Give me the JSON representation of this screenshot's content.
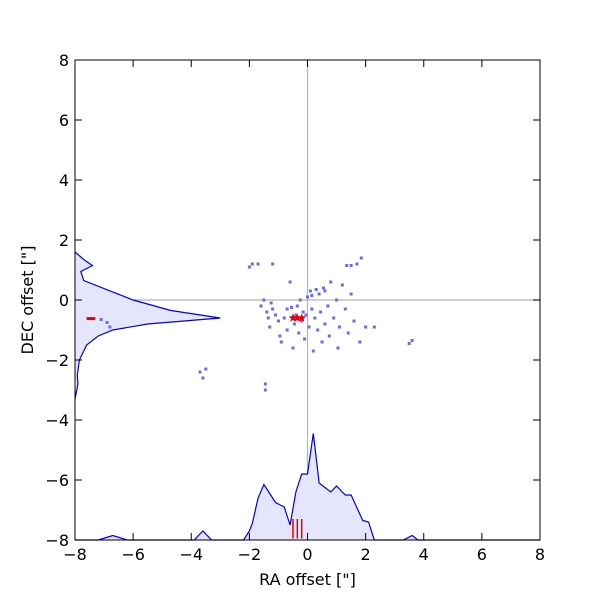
{
  "chart_data": {
    "type": "scatter",
    "title": "",
    "xlabel": "RA offset [\"]",
    "ylabel": "DEC offset [\"]",
    "xlim": [
      -8,
      8
    ],
    "ylim": [
      -8,
      8
    ],
    "x_ticks": [
      "−8",
      "−6",
      "−4",
      "−2",
      "0",
      "2",
      "4",
      "6",
      "8"
    ],
    "y_ticks": [
      "8",
      "6",
      "4",
      "2",
      "0",
      "−2",
      "−4",
      "−6",
      "−8"
    ],
    "x_tick_values": [
      -8,
      -6,
      -4,
      -2,
      0,
      2,
      4,
      6,
      8
    ],
    "y_tick_values": [
      8,
      6,
      4,
      2,
      0,
      -2,
      -4,
      -6,
      -8
    ],
    "grid": false,
    "reference_lines": {
      "x": 0,
      "y": 0,
      "color": "#b3b3b3"
    },
    "colors": {
      "points": "#6a6af5",
      "markers": "#e60000",
      "histogram_line": "#0000e6",
      "histogram_fill": "#e5e5fb"
    },
    "points": [
      [
        -7.1,
        -0.65
      ],
      [
        -6.9,
        -0.75
      ],
      [
        -6.8,
        -0.9
      ],
      [
        -3.7,
        -2.4
      ],
      [
        -3.6,
        -2.6
      ],
      [
        -3.5,
        -2.3
      ],
      [
        -2.0,
        1.1
      ],
      [
        -1.9,
        1.2
      ],
      [
        -1.7,
        1.2
      ],
      [
        -1.2,
        1.2
      ],
      [
        -1.45,
        -2.8
      ],
      [
        -1.45,
        -3.0
      ],
      [
        -1.6,
        -0.2
      ],
      [
        -1.5,
        0.0
      ],
      [
        -1.4,
        -0.4
      ],
      [
        -1.35,
        -0.6
      ],
      [
        -1.3,
        -0.9
      ],
      [
        -1.2,
        -0.3
      ],
      [
        -1.1,
        -0.5
      ],
      [
        -1.0,
        -0.7
      ],
      [
        -0.95,
        -1.2
      ],
      [
        -0.9,
        -1.4
      ],
      [
        -0.8,
        -0.6
      ],
      [
        -0.7,
        -1.0
      ],
      [
        -0.7,
        -0.3
      ],
      [
        -0.6,
        0.6
      ],
      [
        -0.5,
        -1.6
      ],
      [
        -0.45,
        -0.8
      ],
      [
        -0.4,
        -0.5
      ],
      [
        -0.35,
        -0.2
      ],
      [
        -0.3,
        -1.1
      ],
      [
        -0.25,
        0.0
      ],
      [
        -0.2,
        -0.7
      ],
      [
        -0.15,
        -0.4
      ],
      [
        -0.1,
        -1.3
      ],
      [
        -0.05,
        -0.5
      ],
      [
        0.0,
        0.1
      ],
      [
        0.05,
        -0.9
      ],
      [
        0.1,
        0.3
      ],
      [
        0.15,
        -0.3
      ],
      [
        0.2,
        -1.7
      ],
      [
        0.25,
        -0.6
      ],
      [
        0.3,
        0.35
      ],
      [
        0.35,
        -1.0
      ],
      [
        0.4,
        0.2
      ],
      [
        0.45,
        -0.4
      ],
      [
        0.5,
        -1.4
      ],
      [
        0.55,
        0.4
      ],
      [
        0.6,
        -0.8
      ],
      [
        0.7,
        -0.2
      ],
      [
        0.75,
        -1.2
      ],
      [
        0.8,
        0.6
      ],
      [
        0.9,
        -0.6
      ],
      [
        1.0,
        0.0
      ],
      [
        1.05,
        -1.6
      ],
      [
        1.1,
        -0.9
      ],
      [
        1.2,
        0.5
      ],
      [
        1.3,
        -0.3
      ],
      [
        1.4,
        -1.1
      ],
      [
        1.5,
        0.2
      ],
      [
        1.6,
        -0.7
      ],
      [
        1.7,
        1.2
      ],
      [
        1.8,
        -1.4
      ],
      [
        1.85,
        1.4
      ],
      [
        2.0,
        -0.9
      ],
      [
        2.3,
        -0.9
      ],
      [
        1.5,
        1.15
      ],
      [
        1.35,
        1.15
      ],
      [
        -0.55,
        -0.25
      ],
      [
        -1.25,
        -0.1
      ],
      [
        0.15,
        0.15
      ],
      [
        0.6,
        0.3
      ],
      [
        3.5,
        -1.45
      ],
      [
        3.6,
        -1.35
      ]
    ],
    "markers": {
      "star_points": [
        [
          -0.5,
          -0.6
        ],
        [
          -0.35,
          -0.6
        ],
        [
          -0.2,
          -0.6
        ]
      ],
      "horizontal_line": {
        "x": [
          -7.6,
          -7.3
        ],
        "y": -0.62
      },
      "vertical_lines": [
        {
          "x": -0.5,
          "y": [
            -7.95,
            -7.3
          ]
        },
        {
          "x": -0.35,
          "y": [
            -7.95,
            -7.3
          ]
        },
        {
          "x": -0.2,
          "y": [
            -7.95,
            -7.3
          ]
        }
      ]
    },
    "x_histogram": {
      "x": [
        -8,
        -7.2,
        -6.7,
        -6.2,
        -5,
        -3.9,
        -3.6,
        -3.3,
        -2.2,
        -2,
        -1.9,
        -1.7,
        -1.5,
        -1.1,
        -0.8,
        -0.6,
        -0.4,
        -0.2,
        0,
        0.2,
        0.4,
        0.8,
        1.0,
        1.3,
        1.5,
        1.9,
        2.1,
        2.3,
        3.3,
        3.6,
        3.8,
        8
      ],
      "height": [
        0,
        0,
        0.15,
        0,
        0,
        0,
        0.3,
        0,
        0,
        0.3,
        0.55,
        1.4,
        1.85,
        1.25,
        1.1,
        0.5,
        1.6,
        2.2,
        2.2,
        3.55,
        1.9,
        1.6,
        1.8,
        1.5,
        1.5,
        0.65,
        0.6,
        0,
        0,
        0.15,
        0,
        0
      ]
    },
    "y_histogram": {
      "y": [
        1.6,
        1.35,
        1.15,
        0.95,
        0.65,
        0.0,
        -0.35,
        -0.6,
        -0.8,
        -1.0,
        -1.2,
        -1.5,
        -2.0,
        -2.5,
        -2.8,
        -3.3
      ],
      "width": [
        0,
        0.3,
        0.6,
        0.2,
        0.3,
        2.0,
        3.3,
        5.0,
        2.5,
        1.3,
        0.8,
        0.4,
        0.15,
        0.08,
        0.1,
        0
      ]
    }
  }
}
